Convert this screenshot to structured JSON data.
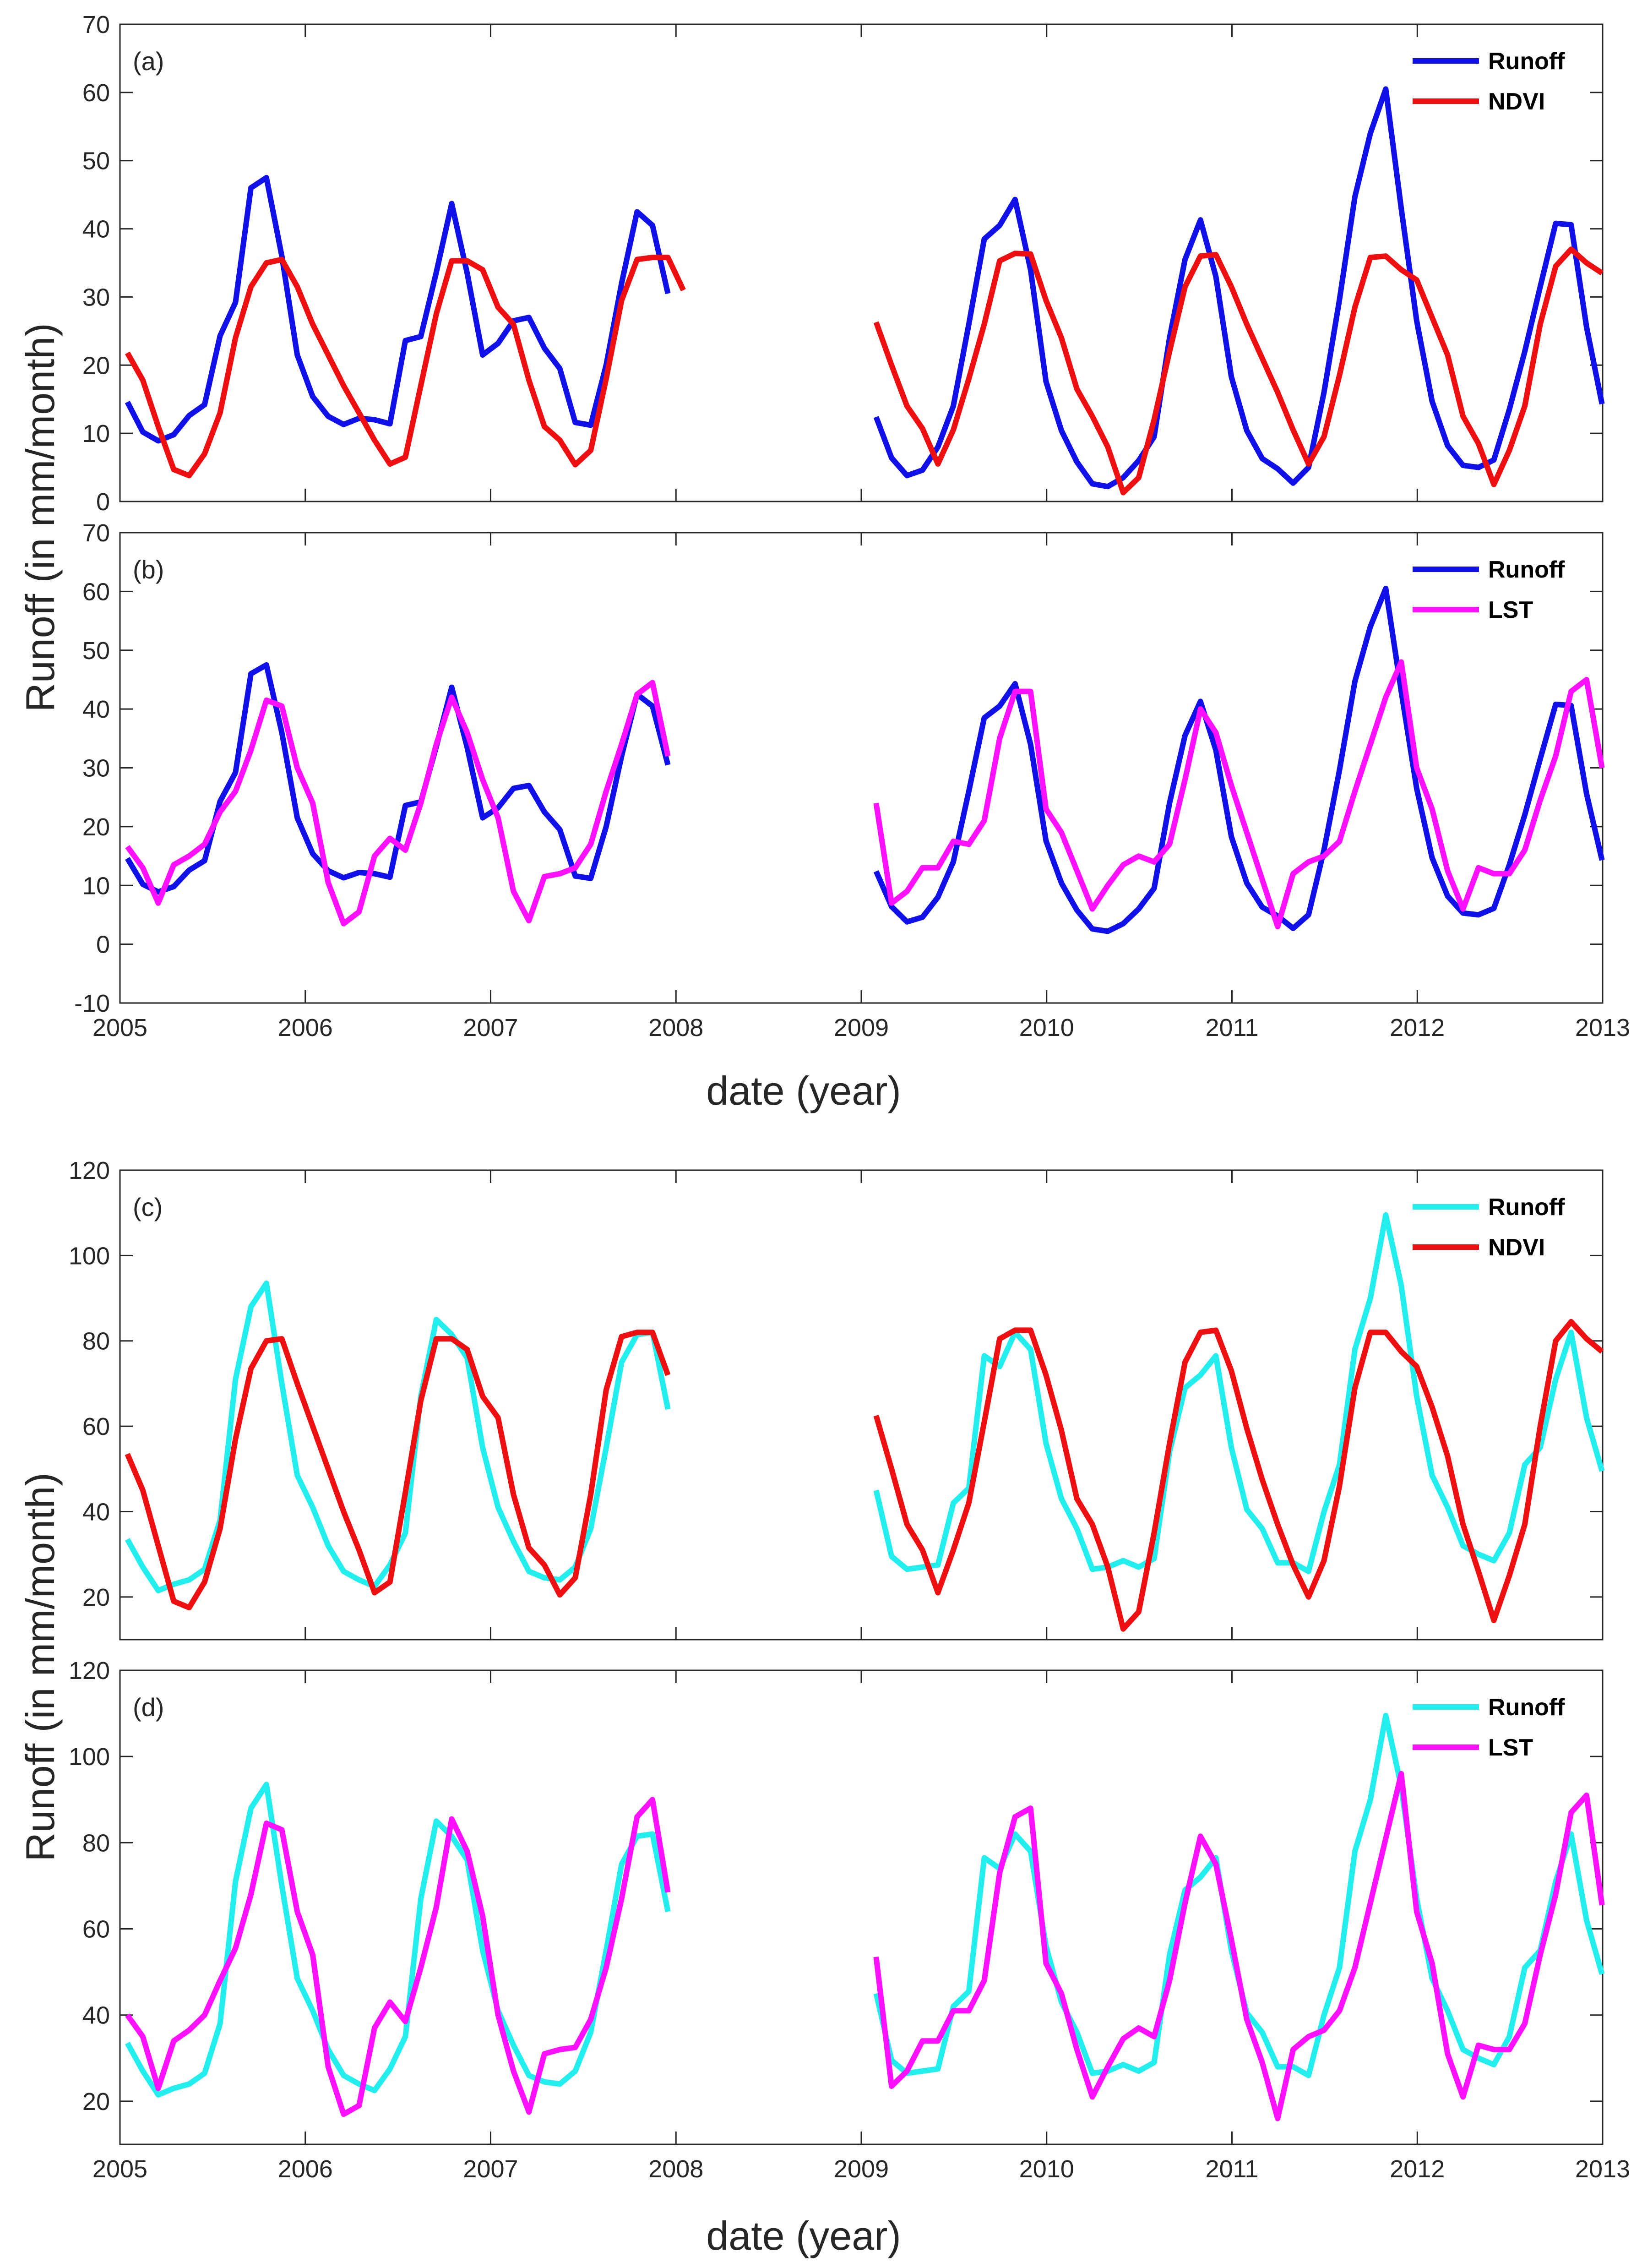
{
  "figure": {
    "xlabel": "date (year)",
    "ylabel": "Runoff (in mm/month)",
    "x_ticks": [
      "2005",
      "2006",
      "2007",
      "2008",
      "2009",
      "2010",
      "2011",
      "2012",
      "2013"
    ]
  },
  "colors": {
    "runoff_blue": "#1010e8",
    "runoff_cyan": "#22eeee",
    "ndvi": "#ee1010",
    "lst": "#ff10ff"
  },
  "chart_data": [
    {
      "type": "line",
      "panel": "(a)",
      "xlim": [
        2005,
        2013
      ],
      "ylim": [
        0,
        70
      ],
      "yticks": [
        0,
        10,
        20,
        30,
        40,
        50,
        60,
        70
      ],
      "series": [
        {
          "name": "Runoff",
          "color": "#1010e8",
          "segments": [
            {
              "start": 2005.04,
              "values": [
                14.6,
                10.2,
                8.9,
                9.8,
                12.6,
                14.2,
                24.3,
                29.2,
                46,
                47.5,
                36,
                21.5,
                15.4,
                12.5,
                11.3,
                12.2,
                12,
                11.4,
                23.6,
                24.2,
                33.6,
                43.7,
                33.5,
                21.5,
                23.2,
                26.5,
                27,
                22.5,
                19.5,
                11.6,
                11.2,
                20,
                32,
                42.5,
                40.5,
                30.5
              ]
            },
            {
              "start": 2009.08,
              "values": [
                12.4,
                6.4,
                3.8,
                4.6,
                8,
                14,
                26,
                38.5,
                40.5,
                44.3,
                34,
                17.6,
                10.4,
                5.8,
                2.6,
                2.2,
                3.5,
                6,
                9.5,
                24,
                35.5,
                41.3,
                33,
                18.3,
                10.4,
                6.3,
                4.8,
                2.7,
                5,
                16,
                29.6,
                44.7,
                54,
                60.5,
                43,
                26.5,
                14.7,
                8.2,
                5.3,
                5,
                6.1,
                13.5,
                22,
                31.5,
                40.8,
                40.6,
                25.6,
                14.3
              ]
            }
          ]
        },
        {
          "name": "NDVI",
          "color": "#ee1010",
          "segments": [
            {
              "start": 2005.04,
              "values": [
                21.8,
                17.8,
                11,
                4.7,
                3.8,
                7,
                13,
                24,
                31.5,
                35,
                35.5,
                31.5,
                26,
                21.5,
                17,
                13,
                9,
                5.5,
                6.5,
                17,
                27.5,
                35.3,
                35.3,
                34,
                28.5,
                26,
                17.8,
                11,
                9,
                5.4,
                7.5,
                18,
                29.5,
                35.5,
                35.8,
                35.8,
                31
              ]
            },
            {
              "start": 2009.08,
              "values": [
                26.3,
                20,
                14,
                10.7,
                5.5,
                10.5,
                18,
                26,
                35.3,
                36.4,
                36.3,
                29.5,
                24,
                16.5,
                12.5,
                8,
                1.3,
                3.5,
                12,
                22,
                31.5,
                36,
                36.2,
                31.5,
                26,
                21,
                16,
                10.5,
                5.5,
                9.5,
                18.5,
                28.5,
                35.8,
                36,
                34,
                32.5,
                27,
                21.5,
                12.5,
                8.5,
                2.5,
                7.5,
                14,
                26,
                34.5,
                37,
                35,
                33.5
              ]
            }
          ]
        }
      ]
    },
    {
      "type": "line",
      "panel": "(b)",
      "xlim": [
        2005,
        2013
      ],
      "ylim": [
        -10,
        70
      ],
      "yticks": [
        -10,
        0,
        10,
        20,
        30,
        40,
        50,
        60,
        70
      ],
      "series": [
        {
          "name": "Runoff",
          "color": "#1010e8",
          "segments": [
            {
              "start": 2005.04,
              "values": [
                14.6,
                10.2,
                8.9,
                9.8,
                12.6,
                14.2,
                24.3,
                29.2,
                46,
                47.5,
                36,
                21.5,
                15.4,
                12.5,
                11.3,
                12.2,
                12,
                11.4,
                23.6,
                24.2,
                33.6,
                43.7,
                33.5,
                21.5,
                23.2,
                26.5,
                27,
                22.5,
                19.5,
                11.6,
                11.2,
                20,
                32,
                42.5,
                40.5,
                30.5
              ]
            },
            {
              "start": 2009.08,
              "values": [
                12.4,
                6.4,
                3.8,
                4.6,
                8,
                14,
                26,
                38.5,
                40.5,
                44.3,
                34,
                17.6,
                10.4,
                5.8,
                2.6,
                2.2,
                3.5,
                6,
                9.5,
                24,
                35.5,
                41.3,
                33,
                18.3,
                10.4,
                6.3,
                4.8,
                2.7,
                5,
                16,
                29.6,
                44.7,
                54,
                60.5,
                43,
                26.5,
                14.7,
                8.2,
                5.3,
                5,
                6.1,
                13.5,
                22,
                31.5,
                40.8,
                40.6,
                25.6,
                14.3
              ]
            }
          ]
        },
        {
          "name": "LST",
          "color": "#ff10ff",
          "segments": [
            {
              "start": 2005.04,
              "values": [
                16.6,
                13,
                7,
                13.5,
                15,
                17,
                22.5,
                26,
                33,
                41.5,
                40.5,
                30,
                24,
                10.5,
                3.5,
                5.5,
                15,
                18,
                16,
                24,
                34,
                42,
                36,
                28,
                21.5,
                9,
                4,
                11.5,
                12,
                13,
                17,
                26,
                34,
                42.5,
                44.5,
                32
              ]
            },
            {
              "start": 2009.08,
              "values": [
                24,
                7,
                9,
                13,
                13,
                17.5,
                17,
                21,
                35,
                43,
                43,
                23,
                19,
                12.5,
                6,
                10,
                13.5,
                15,
                14,
                17,
                28,
                40,
                36,
                27,
                19,
                11,
                3,
                12,
                14,
                15,
                17.5,
                26,
                34,
                42,
                48,
                30,
                23,
                12.5,
                6,
                13,
                12,
                12,
                16,
                24.5,
                32,
                43,
                45,
                30
              ]
            }
          ]
        }
      ]
    },
    {
      "type": "line",
      "panel": "(c)",
      "xlim": [
        2005,
        2013
      ],
      "ylim": [
        10,
        120
      ],
      "yticks": [
        20,
        40,
        60,
        80,
        100,
        120
      ],
      "series": [
        {
          "name": "Runoff",
          "color": "#22eeee",
          "segments": [
            {
              "start": 2005.04,
              "values": [
                33.5,
                27,
                21.5,
                23,
                24,
                26.5,
                38,
                71,
                88,
                93.5,
                70,
                48.5,
                41,
                32,
                26,
                24,
                22.5,
                27.5,
                35,
                67,
                85,
                81.5,
                76,
                55,
                41,
                33,
                26,
                24.5,
                24,
                27,
                36,
                55,
                75,
                81.5,
                82,
                64
              ]
            },
            {
              "start": 2009.08,
              "values": [
                45,
                29.5,
                26.5,
                27,
                27.5,
                42,
                45.5,
                76.5,
                74,
                82,
                78,
                56,
                43,
                36,
                26.5,
                27,
                28.5,
                27,
                29,
                54,
                69,
                72,
                76.5,
                55,
                40.5,
                36,
                28,
                28,
                26,
                40,
                51,
                78,
                90,
                109.5,
                93,
                67,
                48.5,
                41,
                32,
                30,
                28.5,
                35,
                51,
                55,
                71,
                82,
                62,
                49.5
              ]
            }
          ]
        },
        {
          "name": "NDVI",
          "color": "#ee1010",
          "segments": [
            {
              "start": 2005.04,
              "values": [
                53.5,
                45,
                32,
                19,
                17.5,
                23.5,
                36,
                57,
                73.5,
                80,
                80.5,
                70,
                60,
                50,
                40,
                31,
                21,
                23.5,
                44.5,
                66,
                80.5,
                80.5,
                78,
                67,
                62,
                44,
                31.5,
                27.5,
                20.5,
                24.5,
                44,
                68.5,
                81,
                82,
                82,
                72
              ]
            },
            {
              "start": 2009.08,
              "values": [
                62.5,
                50,
                37,
                31,
                21,
                31,
                42,
                61,
                80.5,
                82.5,
                82.5,
                72,
                59,
                43,
                37,
                27,
                12.5,
                16.5,
                35,
                56,
                75,
                82,
                82.5,
                73,
                59.5,
                47.5,
                37,
                27.5,
                20,
                28.5,
                46,
                69,
                82,
                82,
                77.5,
                74,
                64.5,
                53,
                37,
                26,
                14.5,
                25,
                37,
                60,
                80,
                84.5,
                80.5,
                77.5
              ]
            }
          ]
        }
      ]
    },
    {
      "type": "line",
      "panel": "(d)",
      "xlim": [
        2005,
        2013
      ],
      "ylim": [
        10,
        120
      ],
      "yticks": [
        20,
        40,
        60,
        80,
        100,
        120
      ],
      "series": [
        {
          "name": "Runoff",
          "color": "#22eeee",
          "segments": [
            {
              "start": 2005.04,
              "values": [
                33.5,
                27,
                21.5,
                23,
                24,
                26.5,
                38,
                71,
                88,
                93.5,
                70,
                48.5,
                41,
                32,
                26,
                24,
                22.5,
                27.5,
                35,
                67,
                85,
                81.5,
                76,
                55,
                41,
                33,
                26,
                24.5,
                24,
                27,
                36,
                55,
                75,
                81.5,
                82,
                64
              ]
            },
            {
              "start": 2009.08,
              "values": [
                45,
                29.5,
                26.5,
                27,
                27.5,
                42,
                45.5,
                76.5,
                74,
                82,
                78,
                56,
                43,
                36,
                26.5,
                27,
                28.5,
                27,
                29,
                54,
                69,
                72,
                76.5,
                55,
                40.5,
                36,
                28,
                28,
                26,
                40,
                51,
                78,
                90,
                109.5,
                93,
                67,
                48.5,
                41,
                32,
                30,
                28.5,
                35,
                51,
                55,
                71,
                82,
                62,
                49.5
              ]
            }
          ]
        },
        {
          "name": "LST",
          "color": "#ff10ff",
          "segments": [
            {
              "start": 2005.04,
              "values": [
                40,
                35,
                23,
                34,
                36.5,
                40,
                48,
                55.5,
                68,
                84.5,
                83,
                64,
                54,
                28,
                17,
                19,
                37,
                43,
                38.5,
                51,
                65,
                85.5,
                78,
                63,
                40,
                27,
                17.5,
                31,
                32,
                32.5,
                39,
                51,
                67,
                86,
                90,
                68.5
              ]
            },
            {
              "start": 2009.08,
              "values": [
                53.5,
                23.5,
                27,
                34,
                34,
                41,
                41,
                48,
                73,
                86,
                88,
                52,
                45,
                32,
                21,
                28,
                34.5,
                37,
                35,
                48,
                66,
                81.5,
                75,
                57.5,
                39,
                29,
                16,
                32,
                35,
                36.5,
                41,
                51,
                66,
                81,
                96,
                64,
                52,
                31,
                21,
                33,
                32,
                32,
                38,
                54,
                68,
                87,
                91,
                65.5
              ]
            }
          ]
        }
      ]
    }
  ]
}
